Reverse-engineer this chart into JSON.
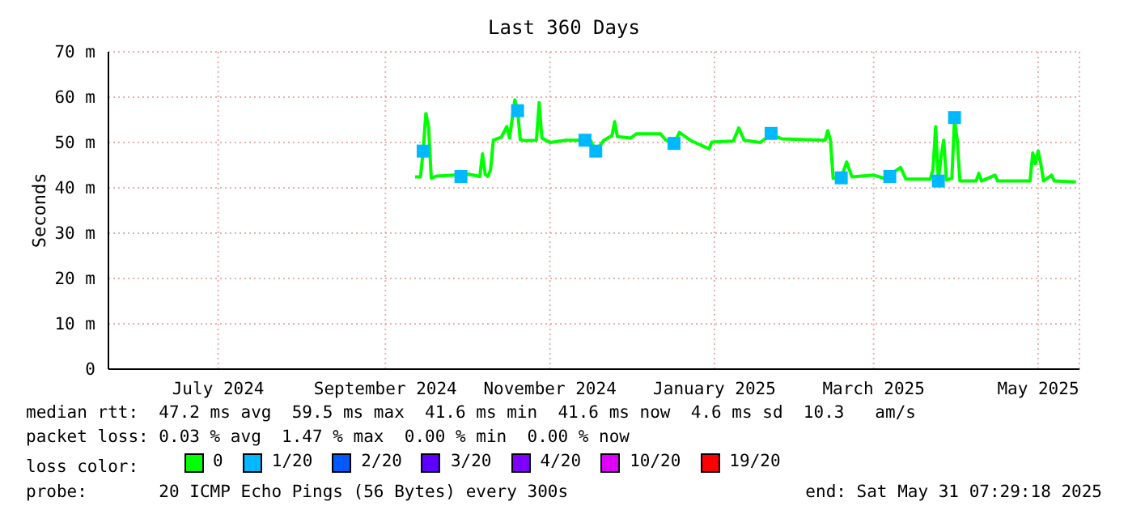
{
  "chart_data": {
    "type": "line",
    "title": "Last 360 Days",
    "ylabel": "Seconds",
    "legend_title": "loss color:",
    "legend": "bottom",
    "grid": true,
    "marker": "none",
    "line_style": "solid",
    "xlim": [
      "2024-06-05T07:29",
      "2025-05-31T07:29"
    ],
    "xticks": [
      {
        "value": "2024-07-16",
        "label": "July 2024"
      },
      {
        "value": "2024-09-16",
        "label": "September 2024"
      },
      {
        "value": "2024-11-16",
        "label": "November 2024"
      },
      {
        "value": "2025-01-16",
        "label": "January 2025"
      },
      {
        "value": "2025-03-16",
        "label": "March 2025"
      },
      {
        "value": "2025-05-16",
        "label": "May 2025"
      }
    ],
    "ylim": [
      0,
      70
    ],
    "yticks": [
      0,
      {
        "value": 10,
        "label": "10 m"
      },
      {
        "value": 20,
        "label": "20 m"
      },
      {
        "value": 30,
        "label": "30 m"
      },
      {
        "value": 40,
        "label": "40 m"
      },
      {
        "value": 50,
        "label": "50 m"
      },
      {
        "value": 60,
        "label": "60 m"
      },
      {
        "value": 70,
        "label": "70 m"
      }
    ],
    "series": [
      {
        "name": "0",
        "color": "#00ff00",
        "x": [
          "2024-09-27",
          "2024-09-29",
          "2024-09-30",
          "2024-10-01",
          "2024-10-02",
          "2024-10-03",
          "2024-10-05",
          "2024-10-17",
          "2024-10-21",
          "2024-10-22",
          "2024-10-23",
          "2024-10-24",
          "2024-10-25",
          "2024-10-26",
          "2024-10-29",
          "2024-10-31",
          "2024-11-01",
          "2024-11-03",
          "2024-11-04",
          "2024-11-05",
          "2024-11-07",
          "2024-11-11",
          "2024-11-12",
          "2024-11-13",
          "2024-11-16",
          "2024-11-22",
          "2024-12-01",
          "2024-12-03",
          "2024-12-06",
          "2024-12-09",
          "2024-12-10",
          "2024-12-11",
          "2024-12-16",
          "2024-12-18",
          "2024-12-27",
          "2024-12-29",
          "2025-01-01",
          "2025-01-03",
          "2025-01-07",
          "2025-01-14",
          "2025-01-15",
          "2025-01-23",
          "2025-01-25",
          "2025-01-27",
          "2025-02-02",
          "2025-02-06",
          "2025-02-10",
          "2025-02-26",
          "2025-02-27",
          "2025-02-28",
          "2025-03-01",
          "2025-03-04",
          "2025-03-06",
          "2025-03-08",
          "2025-03-16",
          "2025-03-20",
          "2025-03-26",
          "2025-03-28",
          "2025-04-06",
          "2025-04-07",
          "2025-04-08",
          "2025-04-09",
          "2025-04-10",
          "2025-04-11",
          "2025-04-12",
          "2025-04-14",
          "2025-04-15",
          "2025-04-16",
          "2025-04-17",
          "2025-04-23",
          "2025-04-24",
          "2025-04-25",
          "2025-04-30",
          "2025-05-01",
          "2025-05-13",
          "2025-05-14",
          "2025-05-15",
          "2025-05-16",
          "2025-05-17",
          "2025-05-18",
          "2025-05-21",
          "2025-05-22",
          "2025-05-30"
        ],
        "values": [
          42.4,
          42.4,
          48.1,
          56.4,
          53.5,
          42.1,
          42.6,
          43,
          42.5,
          47.5,
          43,
          42.5,
          44,
          50.5,
          51.2,
          53.5,
          51,
          59.4,
          57,
          50.6,
          50.4,
          50.5,
          58.8,
          51,
          50,
          50.5,
          50.5,
          48.1,
          50.5,
          51.5,
          54.6,
          51.3,
          51,
          51.9,
          51.9,
          50.5,
          49.8,
          52.2,
          50.5,
          48.6,
          50.1,
          50.3,
          53.2,
          50.5,
          50,
          51.8,
          50.8,
          50.5,
          52.6,
          50.5,
          42.1,
          42.2,
          45.7,
          42.4,
          42.8,
          42.1,
          44.5,
          41.9,
          41.9,
          44,
          53.5,
          41.5,
          46.9,
          50.5,
          41.7,
          42.1,
          55.2,
          50.5,
          41.5,
          41.5,
          43.2,
          41.5,
          42.8,
          41.5,
          41.5,
          47.7,
          45.3,
          48.1,
          45.3,
          41.5,
          42.8,
          41.5,
          41.3
        ]
      },
      {
        "name": "1/20",
        "color": "#00b8ff",
        "type": "scatter",
        "marker": "square",
        "x": [
          "2024-09-30",
          "2024-10-14",
          "2024-11-04",
          "2024-11-29",
          "2024-12-03",
          "2025-01-01",
          "2025-02-06",
          "2025-03-04",
          "2025-03-22",
          "2025-04-09",
          "2025-04-15"
        ],
        "values": [
          48.1,
          42.5,
          57,
          50.5,
          48.1,
          49.8,
          52,
          42.2,
          42.5,
          41.5,
          55.5
        ]
      },
      {
        "name": "2/20",
        "color": "#0059ff",
        "type": "scatter"
      },
      {
        "name": "3/20",
        "color": "#5e00ff",
        "type": "scatter"
      },
      {
        "name": "4/20",
        "color": "#7e00ff",
        "type": "scatter"
      },
      {
        "name": "10/20",
        "color": "#dd00ff",
        "type": "scatter"
      },
      {
        "name": "19/20",
        "color": "#ff0000",
        "type": "scatter"
      }
    ],
    "annotations": [
      "median rtt:  47.2 ms avg  59.5 ms max  41.6 ms min  41.6 ms now  4.6 ms sd  10.3   am/s",
      "packet loss: 0.03 % avg  1.47 % max  0.00 % min  0.00 % now",
      "probe:       20 ICMP Echo Pings (56 Bytes) every 300s",
      "end: Sat May 31 07:29:18 2025"
    ]
  }
}
